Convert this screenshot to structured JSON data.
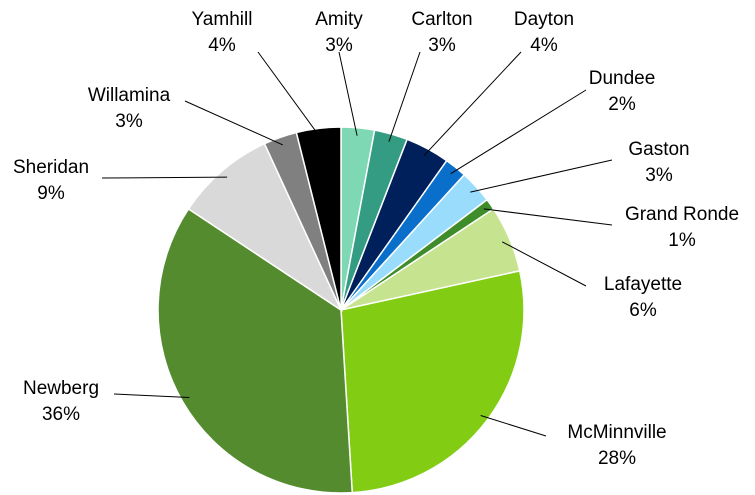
{
  "chart_data": {
    "type": "pie",
    "title": "",
    "slices": [
      {
        "label": "Amity",
        "value": 3,
        "pct": "3%",
        "color": "#7fd8b4"
      },
      {
        "label": "Carlton",
        "value": 3,
        "pct": "3%",
        "color": "#339c83"
      },
      {
        "label": "Dayton",
        "value": 4,
        "pct": "4%",
        "color": "#00205b"
      },
      {
        "label": "Dundee",
        "value": 2,
        "pct": "2%",
        "color": "#0a6ecb"
      },
      {
        "label": "Gaston",
        "value": 3,
        "pct": "3%",
        "color": "#99dcfb"
      },
      {
        "label": "Grand Ronde",
        "value": 1,
        "pct": "1%",
        "color": "#3f8c2b"
      },
      {
        "label": "Lafayette",
        "value": 6,
        "pct": "6%",
        "color": "#c6e38f"
      },
      {
        "label": "McMinnville",
        "value": 28,
        "pct": "28%",
        "color": "#82cd14"
      },
      {
        "label": "Newberg",
        "value": 36,
        "pct": "36%",
        "color": "#558b2f"
      },
      {
        "label": "Sheridan",
        "value": 9,
        "pct": "9%",
        "color": "#d9d9d9"
      },
      {
        "label": "Willamina",
        "value": 3,
        "pct": "3%",
        "color": "#808080"
      },
      {
        "label": "Yamhill",
        "value": 4,
        "pct": "4%",
        "color": "#000000"
      }
    ]
  }
}
